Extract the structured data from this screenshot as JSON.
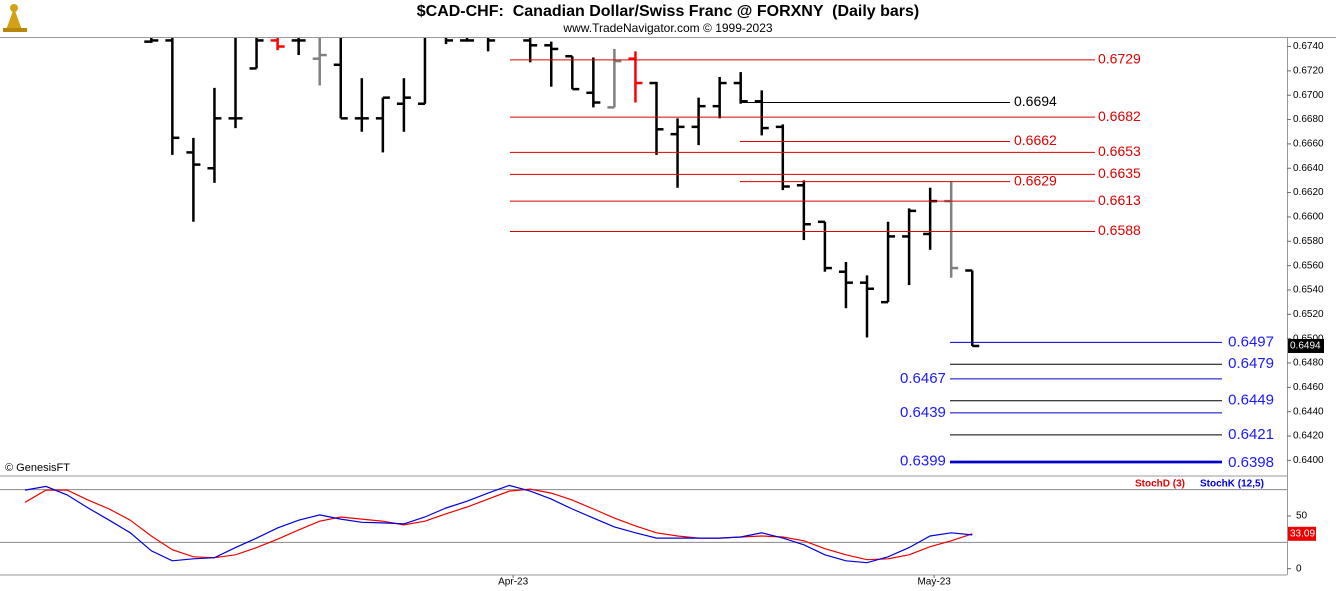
{
  "chart_data": [
    {
      "type": "ohlc",
      "title": "$CAD-CHF:  Canadian Dollar/Swiss Franc @ FORXNY  (Daily bars)",
      "subtitle": "www.TradeNavigator.com © 1999-2023",
      "annotation": "© GenesisFT",
      "categories": [
        null,
        null,
        null,
        null,
        null,
        null,
        null,
        null,
        null,
        null,
        null,
        null,
        null,
        null,
        null,
        null,
        null,
        null,
        null,
        null,
        null,
        null,
        null,
        "Apr-23",
        null,
        null,
        null,
        null,
        null,
        null,
        null,
        null,
        null,
        null,
        null,
        null,
        null,
        null,
        null,
        null,
        null,
        null,
        null,
        "May-23",
        null,
        null
      ],
      "open": [
        null,
        null,
        null,
        null,
        null,
        null,
        0.6744,
        0.6745,
        0.6653,
        0.664,
        0.6681,
        0.6722,
        0.6745,
        0.6745,
        0.673,
        0.6725,
        0.6681,
        0.6681,
        0.6693,
        0.6693,
        0.675,
        0.6745,
        0.675,
        null,
        0.6745,
        0.6741,
        0.6732,
        0.6702,
        0.669,
        0.673,
        0.671,
        0.6668,
        0.6674,
        0.6691,
        0.671,
        0.6695,
        0.6674,
        0.6626,
        0.6596,
        0.6555,
        0.6546,
        0.653,
        0.6584,
        0.6586,
        0.6613,
        0.6556
      ],
      "high": [
        null,
        null,
        null,
        null,
        null,
        null,
        0.676,
        0.677,
        0.6665,
        0.6706,
        0.676,
        0.676,
        0.6747,
        0.676,
        0.676,
        0.675,
        0.6714,
        0.6698,
        0.6714,
        0.676,
        0.676,
        0.676,
        0.676,
        null,
        0.676,
        0.6744,
        0.6732,
        0.6731,
        0.6738,
        0.6736,
        0.6711,
        0.6681,
        0.6698,
        0.6715,
        0.6719,
        0.6704,
        0.6676,
        0.663,
        0.6596,
        0.6563,
        0.6552,
        0.6596,
        0.6607,
        0.6624,
        0.6629,
        0.6556
      ],
      "low": [
        null,
        null,
        null,
        null,
        null,
        null,
        0.6743,
        0.6651,
        0.6596,
        0.6628,
        0.6673,
        0.6722,
        0.6737,
        0.6733,
        0.6708,
        0.6681,
        0.667,
        0.6653,
        0.667,
        0.6693,
        0.6742,
        0.6744,
        0.6736,
        null,
        0.6727,
        0.6707,
        0.6705,
        0.669,
        0.669,
        0.6694,
        0.6651,
        0.6624,
        0.6659,
        0.6681,
        0.6693,
        0.6667,
        0.6622,
        0.6581,
        0.6555,
        0.6525,
        0.6501,
        0.653,
        0.6544,
        0.6573,
        0.655,
        0.6494
      ],
      "close": [
        null,
        null,
        null,
        null,
        null,
        null,
        0.6745,
        0.6665,
        0.6643,
        0.6681,
        0.6681,
        0.6745,
        0.674,
        0.6745,
        0.6733,
        0.6681,
        0.6681,
        0.6698,
        0.6698,
        0.675,
        0.6745,
        0.6745,
        0.6745,
        null,
        0.6741,
        0.6738,
        0.6705,
        0.6694,
        0.6728,
        0.671,
        0.6672,
        0.6674,
        0.6691,
        0.671,
        0.6695,
        0.6673,
        0.6625,
        0.6594,
        0.6558,
        0.6546,
        0.6541,
        0.6584,
        0.6605,
        0.6613,
        0.6558,
        0.6494
      ],
      "colors": [
        null,
        null,
        null,
        null,
        null,
        null,
        "#000000",
        "#000000",
        "#000000",
        "#000000",
        "#000000",
        "#000000",
        "#ff0000",
        "#000000",
        "#808080",
        "#000000",
        "#000000",
        "#000000",
        "#000000",
        "#000000",
        "#000000",
        "#000000",
        "#000000",
        null,
        "#000000",
        "#000000",
        "#000000",
        "#000000",
        "#808080",
        "#ff0000",
        "#000000",
        "#000000",
        "#000000",
        "#000000",
        "#000000",
        "#000000",
        "#000000",
        "#000000",
        "#000000",
        "#000000",
        "#000000",
        "#000000",
        "#000000",
        "#000000",
        "#808080",
        "#000000"
      ],
      "levels": [
        {
          "value": 0.6729,
          "color": "#dd0000",
          "label_color": "#dd0000"
        },
        {
          "value": 0.6694,
          "color": "#000000",
          "label_color": "#000000"
        },
        {
          "value": 0.6682,
          "color": "#dd0000",
          "label_color": "#dd0000"
        },
        {
          "value": 0.6662,
          "color": "#dd0000",
          "label_color": "#dd0000"
        },
        {
          "value": 0.6653,
          "color": "#dd0000",
          "label_color": "#dd0000"
        },
        {
          "value": 0.6635,
          "color": "#dd0000",
          "label_color": "#dd0000"
        },
        {
          "value": 0.6629,
          "color": "#dd0000",
          "label_color": "#dd0000"
        },
        {
          "value": 0.6613,
          "color": "#dd0000",
          "label_color": "#dd0000"
        },
        {
          "value": 0.6588,
          "color": "#dd0000",
          "label_color": "#dd0000"
        },
        {
          "value": 0.6497,
          "color": "#0000cc",
          "label_color": "#1a1aff"
        },
        {
          "value": 0.6479,
          "color": "#000000",
          "label_color": "#1a1aff"
        },
        {
          "value": 0.6467,
          "color": "#0000cc",
          "label_color": "#1a1aff"
        },
        {
          "value": 0.6449,
          "color": "#000000",
          "label_color": "#1a1aff"
        },
        {
          "value": 0.6439,
          "color": "#0000cc",
          "label_color": "#1a1aff"
        },
        {
          "value": 0.6421,
          "color": "#000000",
          "label_color": "#1a1aff"
        },
        {
          "value": 0.6399,
          "color": "#0000cc",
          "label_color": "#1a1aff"
        },
        {
          "value": 0.6398,
          "color": "#0000cc",
          "label_color": "#1a1aff"
        }
      ],
      "ylim": [
        0.6388,
        0.6747
      ],
      "yticks": [
        {
          "value": 0.64,
          "label": "0.6400"
        },
        {
          "value": 0.642,
          "label": "0.6420"
        },
        {
          "value": 0.644,
          "label": "0.6440"
        },
        {
          "value": 0.646,
          "label": "0.6460"
        },
        {
          "value": 0.648,
          "label": "0.6480"
        },
        {
          "value": 0.65,
          "label": "0.6500"
        },
        {
          "value": 0.652,
          "label": "0.6520"
        },
        {
          "value": 0.654,
          "label": "0.6540"
        },
        {
          "value": 0.656,
          "label": "0.6560"
        },
        {
          "value": 0.658,
          "label": "0.6580"
        },
        {
          "value": 0.66,
          "label": "0.6600"
        },
        {
          "value": 0.662,
          "label": "0.6620"
        },
        {
          "value": 0.664,
          "label": "0.6640"
        },
        {
          "value": 0.666,
          "label": "0.6660"
        },
        {
          "value": 0.668,
          "label": "0.6680"
        },
        {
          "value": 0.67,
          "label": "0.6700"
        },
        {
          "value": 0.672,
          "label": "0.6720"
        },
        {
          "value": 0.674,
          "label": "0.6740"
        }
      ]
    },
    {
      "type": "line",
      "series": [
        {
          "name": "StochD (3)",
          "color": "#ee0000",
          "values": [
            63,
            74.5,
            74.5,
            65,
            56.6,
            46,
            31,
            18,
            11.3,
            10.4,
            13.2,
            20,
            28,
            36.8,
            45,
            49,
            47,
            45,
            41.5,
            45,
            52,
            58.5,
            66,
            73.6,
            75.5,
            71.7,
            65,
            56.6,
            48,
            40.6,
            34,
            31,
            29,
            29,
            30,
            31,
            30,
            26.4,
            18.9,
            13.2,
            8.5,
            9.4,
            13.2,
            20.8,
            26.4,
            33.09
          ]
        },
        {
          "name": "StochK (12,5)",
          "color": "#0000dd",
          "values": [
            74.5,
            78,
            70,
            57.5,
            46,
            34,
            17,
            7.5,
            9.4,
            10.4,
            20,
            29,
            38.7,
            46,
            51,
            47,
            44,
            43.4,
            42.5,
            49,
            57.5,
            64,
            71.7,
            79,
            73.6,
            66,
            56.6,
            48,
            39.6,
            34,
            29,
            29,
            29,
            29,
            30,
            34,
            29,
            22.6,
            13.2,
            7.5,
            5.7,
            11.3,
            20,
            31,
            34,
            32
          ]
        }
      ],
      "reference_lines": [
        25,
        75
      ],
      "ylim": [
        -6,
        86
      ],
      "yticks": [
        0,
        50
      ]
    }
  ]
}
